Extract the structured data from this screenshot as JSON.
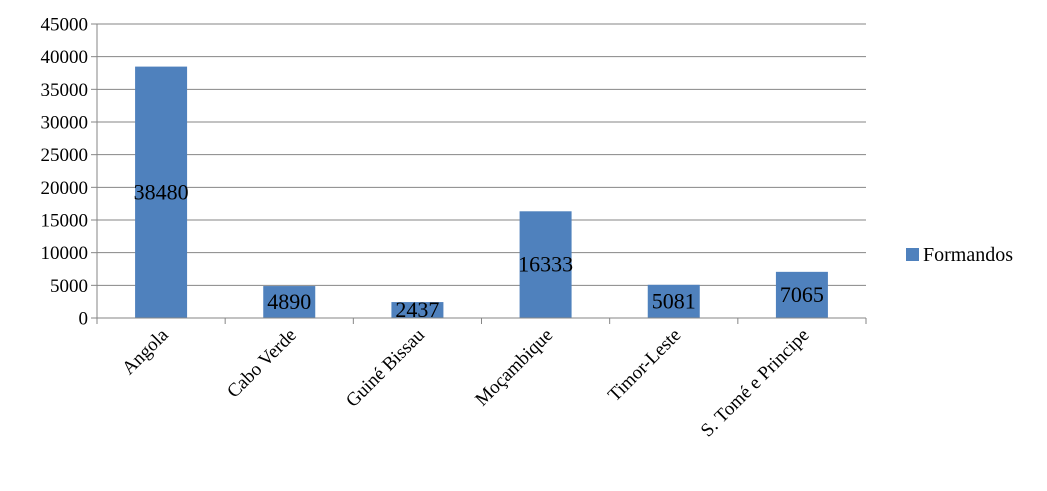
{
  "chart_data": {
    "type": "bar",
    "categories": [
      "Angola",
      "Cabo Verde",
      "Guiné Bissau",
      "Moçambique",
      "Timor-Leste",
      "S. Tomé e Principe"
    ],
    "series": [
      {
        "name": "Formandos",
        "values": [
          38480,
          4890,
          2437,
          16333,
          5081,
          7065
        ],
        "color": "#4F81BD"
      }
    ],
    "data_labels": [
      "38480",
      "4890",
      "2437",
      "16333",
      "5081",
      "7065"
    ],
    "ylim": [
      0,
      45000
    ],
    "yticks": [
      "0",
      "5000",
      "10000",
      "15000",
      "20000",
      "25000",
      "30000",
      "35000",
      "40000",
      "45000"
    ],
    "grid": true,
    "legend": "right"
  }
}
